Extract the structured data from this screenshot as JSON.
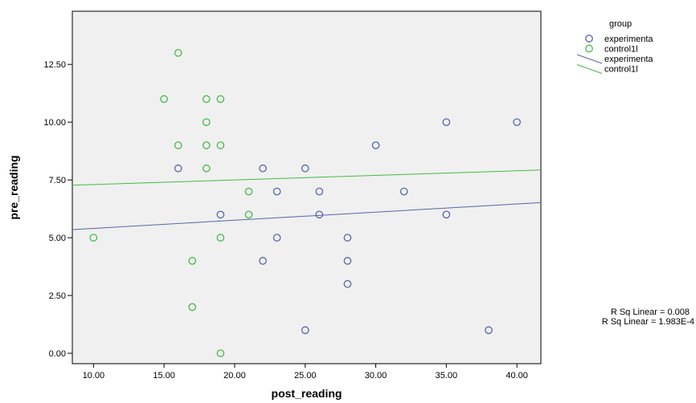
{
  "chart_data": {
    "type": "scatter",
    "xlabel": "post_reading",
    "ylabel": "pre_reading",
    "xlim": [
      8.5,
      41.7
    ],
    "ylim": [
      -0.45,
      14.8
    ],
    "x_ticks": [
      "10.00",
      "15.00",
      "20.00",
      "25.00",
      "30.00",
      "35.00",
      "40.00"
    ],
    "x_tick_values": [
      10,
      15,
      20,
      25,
      30,
      35,
      40
    ],
    "y_ticks": [
      "0.00",
      "2.50",
      "5.00",
      "7.50",
      "10.00",
      "12.50"
    ],
    "y_tick_values": [
      0,
      2.5,
      5,
      7.5,
      10,
      12.5
    ],
    "grid": false,
    "legend": {
      "title": "group",
      "placement": "top-right outside",
      "entries": [
        {
          "label": "experimenta",
          "kind": "marker",
          "series": 0
        },
        {
          "label": "control1l",
          "kind": "marker",
          "series": 1
        },
        {
          "label": "experimenta",
          "kind": "line",
          "series": 0
        },
        {
          "label": "control1l",
          "kind": "line",
          "series": 1
        }
      ]
    },
    "series": [
      {
        "color": "#5566aa",
        "points": [
          [
            16,
            8
          ],
          [
            19,
            6
          ],
          [
            22,
            8
          ],
          [
            22,
            4
          ],
          [
            23,
            7
          ],
          [
            23,
            5
          ],
          [
            25,
            8
          ],
          [
            25,
            1
          ],
          [
            26,
            7
          ],
          [
            26,
            6
          ],
          [
            28,
            5
          ],
          [
            28,
            4
          ],
          [
            28,
            3
          ],
          [
            30,
            9
          ],
          [
            32,
            7
          ],
          [
            35,
            10
          ],
          [
            35,
            6
          ],
          [
            38,
            1
          ],
          [
            40,
            10
          ]
        ],
        "fit_line": [
          [
            8.5,
            5.35
          ],
          [
            41.7,
            6.52
          ]
        ],
        "r_squared_label": "R Sq Linear = 0.008"
      },
      {
        "color": "#44bb44",
        "points": [
          [
            10,
            5
          ],
          [
            15,
            11
          ],
          [
            16,
            13
          ],
          [
            16,
            9
          ],
          [
            17,
            4
          ],
          [
            17,
            2
          ],
          [
            18,
            11
          ],
          [
            18,
            10
          ],
          [
            18,
            9
          ],
          [
            18,
            8
          ],
          [
            19,
            11
          ],
          [
            19,
            9
          ],
          [
            19,
            5
          ],
          [
            19,
            0
          ],
          [
            21,
            7
          ],
          [
            21,
            6
          ]
        ],
        "fit_line": [
          [
            8.5,
            7.27
          ],
          [
            41.7,
            7.93
          ]
        ],
        "r_squared_label": "R Sq Linear = 1.983E-4"
      }
    ],
    "plot_background": "#f0f0f0"
  }
}
